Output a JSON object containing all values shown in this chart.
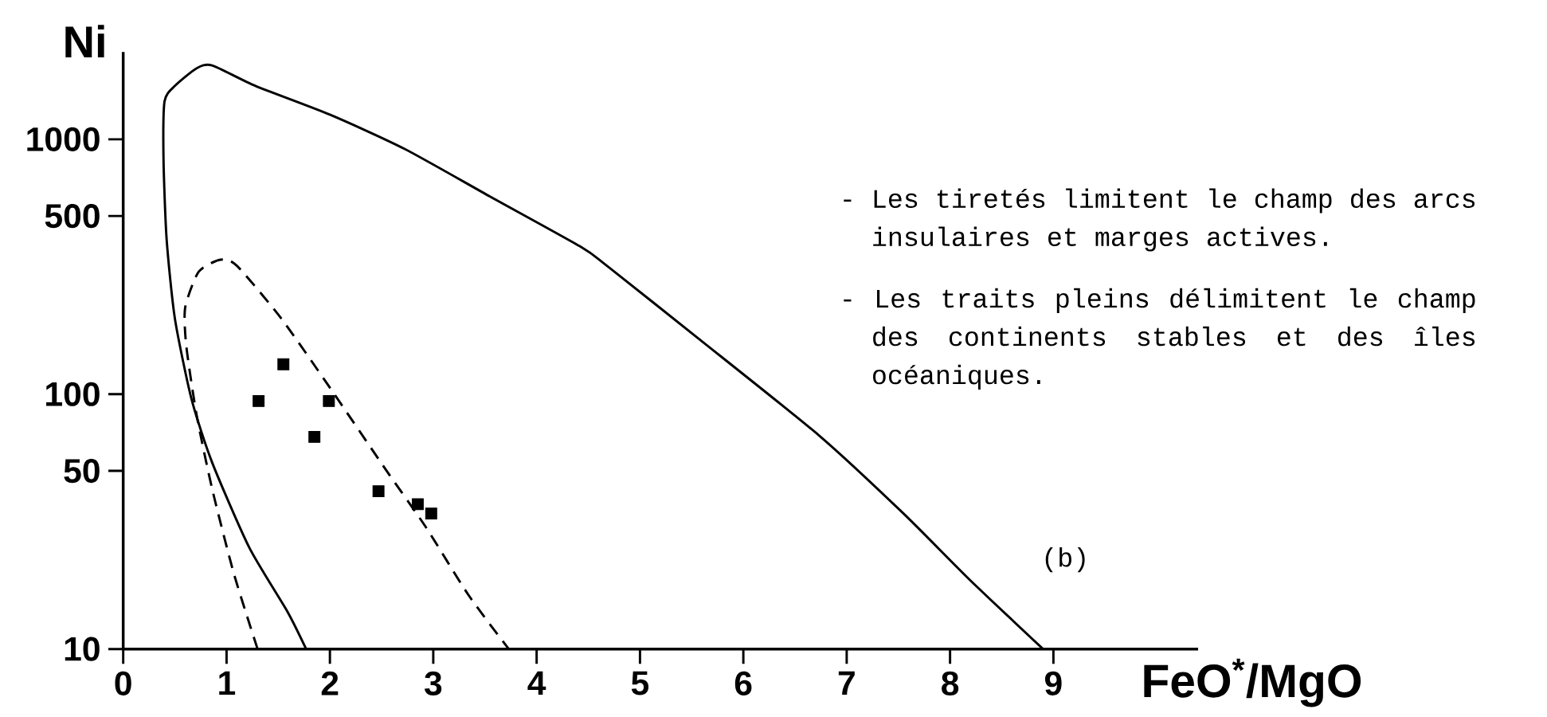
{
  "chart_data": {
    "type": "line",
    "xlabel": "FeO$^{*}$/MgO",
    "ylabel": "Ni",
    "log": "y",
    "xlim": [
      0,
      10.4
    ],
    "ylim": [
      10,
      2200
    ],
    "xticks": [
      0,
      1,
      2,
      3,
      4,
      5,
      6,
      7,
      8,
      9
    ],
    "yticks": [
      10,
      50,
      100,
      500,
      1000
    ],
    "annotations": [
      "- Les tiretés limitent le champ des arcs insulaires et marges actives.",
      "- Les traits pleins délimitent le champ des continents stables et des îles océaniques.",
      "(b)"
    ],
    "series": [
      {
        "line_style": "solid",
        "color": "#000000",
        "x": [
          1.77,
          1.59,
          1.22,
          0.86,
          0.66,
          0.5,
          0.42,
          0.39,
          0.4,
          0.5,
          0.71,
          0.86,
          1.28,
          2.0,
          2.72,
          3.55,
          4.43,
          4.68,
          5.56,
          6.73,
          7.55,
          8.19,
          8.9
        ],
        "values": [
          10,
          14,
          25,
          54,
          96,
          198,
          406,
          834,
          1410,
          1620,
          1900,
          1950,
          1620,
          1250,
          918,
          596,
          378,
          319,
          166,
          69,
          34,
          18.7,
          10
        ]
      },
      {
        "line_style": "dashed",
        "color": "#000000",
        "x": [
          1.3,
          1.07,
          0.86,
          0.71,
          0.61,
          0.6,
          0.73,
          0.94,
          1.1,
          1.53,
          2.0,
          2.52,
          2.93,
          3.34,
          3.73
        ],
        "values": [
          10,
          19.8,
          42.6,
          83,
          155,
          219,
          302,
          337,
          319,
          198,
          106,
          52,
          30,
          16.3,
          10
        ]
      },
      {
        "type": "scatter",
        "marker": "square",
        "color": "#000000",
        "x": [
          1.31,
          1.55,
          1.99,
          1.85,
          2.47,
          2.85,
          2.98
        ],
        "values": [
          94,
          131,
          94,
          68,
          41.6,
          37,
          34
        ]
      }
    ]
  }
}
